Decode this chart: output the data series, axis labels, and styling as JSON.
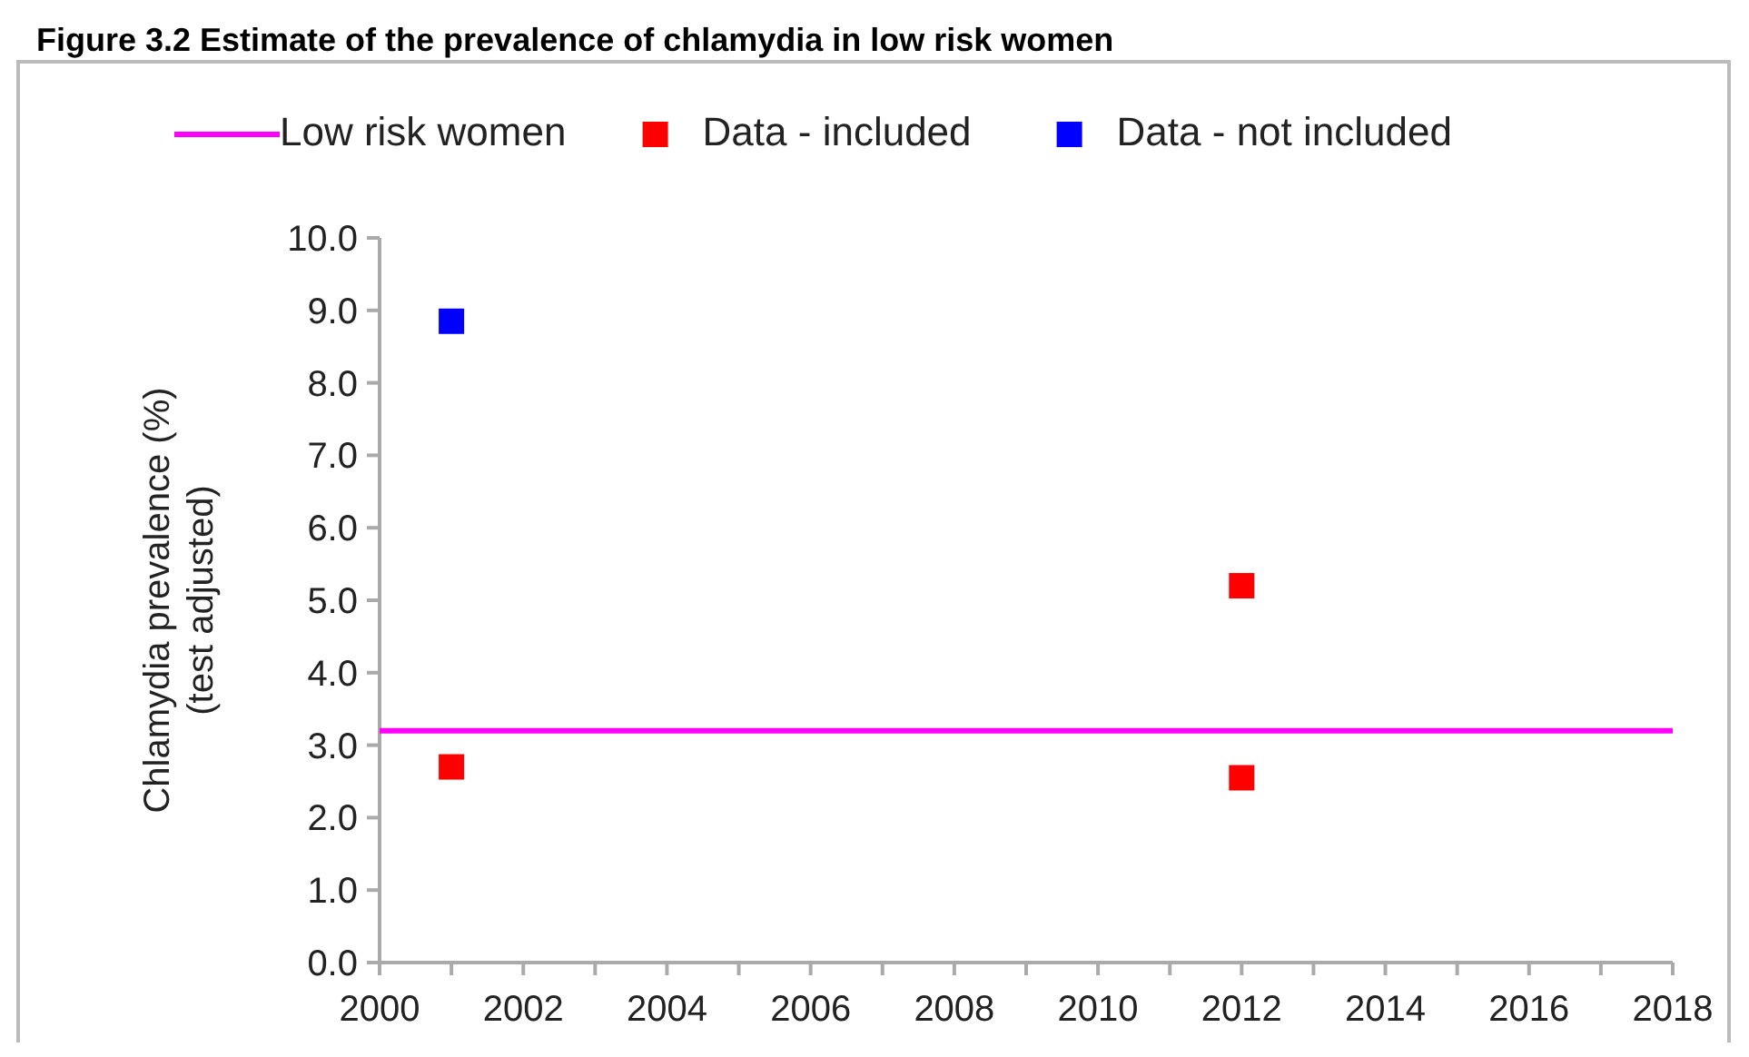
{
  "chart_data": {
    "type": "scatter",
    "title": "Figure 3.2 Estimate of the prevalence of chlamydia in low risk women",
    "ylabel": "Chlamydia prevalence (%)\n(test adjusted)",
    "xlim": [
      2000,
      2018
    ],
    "xticks": [
      2000,
      {
        "value": 2001,
        "label": null
      },
      2002,
      {
        "value": 2003,
        "label": null
      },
      2004,
      {
        "value": 2005,
        "label": null
      },
      2006,
      {
        "value": 2007,
        "label": null
      },
      2008,
      {
        "value": 2009,
        "label": null
      },
      2010,
      {
        "value": 2011,
        "label": null
      },
      2012,
      {
        "value": 2013,
        "label": null
      },
      2014,
      {
        "value": 2015,
        "label": null
      },
      2016,
      {
        "value": 2017,
        "label": null
      },
      2018
    ],
    "ylim": [
      0,
      10
    ],
    "yticks": [
      {
        "value": 0,
        "label": "0.0"
      },
      {
        "value": 1,
        "label": "1.0"
      },
      {
        "value": 2,
        "label": "2.0"
      },
      {
        "value": 3,
        "label": "3.0"
      },
      {
        "value": 4,
        "label": "4.0"
      },
      {
        "value": 5,
        "label": "5.0"
      },
      {
        "value": 6,
        "label": "6.0"
      },
      {
        "value": 7,
        "label": "7.0"
      },
      {
        "value": 8,
        "label": "8.0"
      },
      {
        "value": 9,
        "label": "9.0"
      },
      {
        "value": 10,
        "label": "10.0"
      }
    ],
    "legend": "top",
    "marker": "square",
    "series": [
      {
        "name": "Low risk women",
        "type": "line",
        "color": "#ff00ff",
        "x": [
          2000,
          2018
        ],
        "values": [
          3.2,
          3.2
        ],
        "marker": "none",
        "line_style": "solid"
      },
      {
        "name": "Data - included",
        "color": "#ff0000",
        "x": [
          2001,
          2012,
          2012
        ],
        "values": [
          2.7,
          5.2,
          2.55
        ]
      },
      {
        "name": "Data - not included",
        "color": "#0000ff",
        "x": [
          2001
        ],
        "values": [
          8.85
        ]
      }
    ]
  }
}
